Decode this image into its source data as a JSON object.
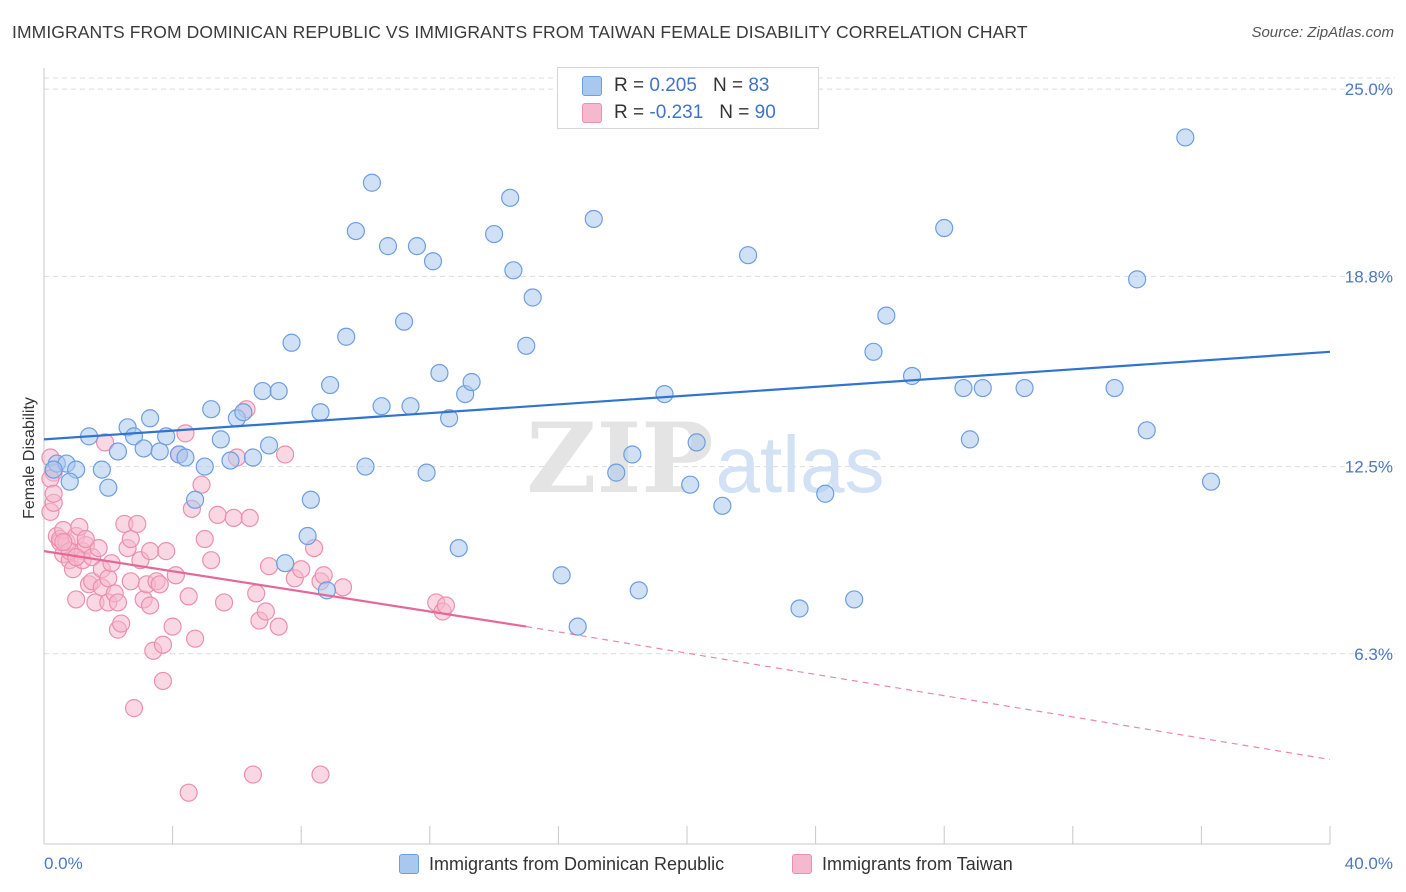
{
  "title": "IMMIGRANTS FROM DOMINICAN REPUBLIC VS IMMIGRANTS FROM TAIWAN FEMALE DISABILITY CORRELATION CHART",
  "source": "Source: ZipAtlas.com",
  "watermark": {
    "zip": "ZIP",
    "atlas": "atlas"
  },
  "legend": {
    "r_label": "R =",
    "n_label": "N =",
    "blue": {
      "r": "0.205",
      "n": "83"
    },
    "pink": {
      "r": "-0.231",
      "n": "90"
    }
  },
  "colors": {
    "blue_fill": "#a9c8ef",
    "blue_stroke": "#6d9ee0",
    "blue_line": "#2f74d0",
    "pink_fill": "#f6b8cc",
    "pink_stroke": "#ec8fae",
    "pink_line": "#e5689a",
    "tick_label": "#4a78c2",
    "grid": "#dcdcdc"
  },
  "chart_data": {
    "type": "scatter",
    "title": "IMMIGRANTS FROM DOMINICAN REPUBLIC VS IMMIGRANTS FROM TAIWAN FEMALE DISABILITY CORRELATION CHART",
    "xlabel": "",
    "ylabel": "Female Disability",
    "xlim": [
      0,
      40
    ],
    "ylim": [
      0,
      25.7
    ],
    "x_tick_labels": [
      {
        "value": 0,
        "label": "0.0%"
      },
      {
        "value": 40,
        "label": "40.0%"
      }
    ],
    "y_tick_labels": [
      {
        "value": 6.3,
        "label": "6.3%"
      },
      {
        "value": 12.5,
        "label": "12.5%"
      },
      {
        "value": 18.8,
        "label": "18.8%"
      },
      {
        "value": 25.0,
        "label": "25.0%"
      }
    ],
    "grid": true,
    "legend_position": "top-center",
    "series": [
      {
        "name": "Immigrants from Dominican Republic",
        "color": "#a9c8ef",
        "trend": {
          "x": [
            0,
            40
          ],
          "y": [
            13.4,
            16.3
          ],
          "style": "solid"
        },
        "points": [
          [
            0.4,
            12.6
          ],
          [
            0.7,
            12.6
          ],
          [
            1.0,
            12.4
          ],
          [
            0.8,
            12.0
          ],
          [
            1.4,
            13.5
          ],
          [
            1.8,
            12.4
          ],
          [
            2.0,
            11.8
          ],
          [
            2.3,
            13.0
          ],
          [
            2.6,
            13.8
          ],
          [
            2.8,
            13.5
          ],
          [
            3.1,
            13.1
          ],
          [
            3.3,
            14.1
          ],
          [
            3.6,
            13.0
          ],
          [
            3.8,
            13.5
          ],
          [
            4.2,
            12.9
          ],
          [
            4.4,
            12.8
          ],
          [
            4.7,
            11.4
          ],
          [
            5.0,
            12.5
          ],
          [
            5.2,
            14.4
          ],
          [
            5.5,
            13.4
          ],
          [
            5.8,
            12.7
          ],
          [
            6.0,
            14.1
          ],
          [
            6.2,
            14.3
          ],
          [
            6.5,
            12.8
          ],
          [
            6.8,
            15.0
          ],
          [
            7.0,
            13.2
          ],
          [
            7.3,
            15.0
          ],
          [
            7.5,
            9.3
          ],
          [
            7.7,
            16.6
          ],
          [
            8.2,
            10.2
          ],
          [
            8.3,
            11.4
          ],
          [
            8.6,
            14.3
          ],
          [
            8.8,
            8.4
          ],
          [
            8.9,
            15.2
          ],
          [
            9.4,
            16.8
          ],
          [
            9.7,
            20.3
          ],
          [
            10.0,
            12.5
          ],
          [
            10.2,
            21.9
          ],
          [
            10.5,
            14.5
          ],
          [
            10.7,
            19.8
          ],
          [
            11.2,
            17.3
          ],
          [
            11.4,
            14.5
          ],
          [
            11.6,
            19.8
          ],
          [
            11.9,
            12.3
          ],
          [
            12.1,
            19.3
          ],
          [
            12.3,
            15.6
          ],
          [
            12.6,
            14.1
          ],
          [
            12.9,
            9.8
          ],
          [
            13.1,
            14.9
          ],
          [
            13.3,
            15.3
          ],
          [
            14.0,
            20.2
          ],
          [
            14.5,
            21.4
          ],
          [
            14.6,
            19.0
          ],
          [
            15.0,
            16.5
          ],
          [
            15.2,
            18.1
          ],
          [
            16.1,
            8.9
          ],
          [
            16.6,
            7.2
          ],
          [
            17.1,
            20.7
          ],
          [
            17.8,
            12.3
          ],
          [
            18.3,
            12.9
          ],
          [
            18.5,
            8.4
          ],
          [
            19.3,
            14.9
          ],
          [
            20.1,
            11.9
          ],
          [
            20.3,
            13.3
          ],
          [
            21.1,
            11.2
          ],
          [
            21.9,
            19.5
          ],
          [
            23.5,
            7.8
          ],
          [
            24.3,
            11.6
          ],
          [
            25.2,
            8.1
          ],
          [
            25.8,
            16.3
          ],
          [
            26.2,
            17.5
          ],
          [
            27.0,
            15.5
          ],
          [
            28.0,
            20.4
          ],
          [
            28.6,
            15.1
          ],
          [
            28.8,
            13.4
          ],
          [
            29.2,
            15.1
          ],
          [
            30.5,
            15.1
          ],
          [
            33.3,
            15.1
          ],
          [
            34.0,
            18.7
          ],
          [
            34.3,
            13.7
          ],
          [
            35.5,
            23.4
          ],
          [
            36.3,
            12.0
          ],
          [
            0.3,
            12.4
          ]
        ]
      },
      {
        "name": "Immigrants from Taiwan",
        "color": "#f6b8cc",
        "trend": {
          "x": [
            0,
            15
          ],
          "y": [
            9.7,
            7.2
          ],
          "style": "solid",
          "extended": {
            "x": [
              15,
              40
            ],
            "y": [
              7.2,
              2.8
            ],
            "style": "dashed"
          }
        },
        "points": [
          [
            0.2,
            12.8
          ],
          [
            0.2,
            11.0
          ],
          [
            0.3,
            11.3
          ],
          [
            0.3,
            12.3
          ],
          [
            0.4,
            10.2
          ],
          [
            0.5,
            10.0
          ],
          [
            0.5,
            10.1
          ],
          [
            0.6,
            10.4
          ],
          [
            0.6,
            9.6
          ],
          [
            0.7,
            10.0
          ],
          [
            0.8,
            9.4
          ],
          [
            0.8,
            9.7
          ],
          [
            0.9,
            9.1
          ],
          [
            1.0,
            8.1
          ],
          [
            1.0,
            10.2
          ],
          [
            1.1,
            10.5
          ],
          [
            1.2,
            9.7
          ],
          [
            1.2,
            9.4
          ],
          [
            1.3,
            9.9
          ],
          [
            1.4,
            8.6
          ],
          [
            1.5,
            8.7
          ],
          [
            1.5,
            9.5
          ],
          [
            1.6,
            8.0
          ],
          [
            1.7,
            9.8
          ],
          [
            1.8,
            8.5
          ],
          [
            1.8,
            9.1
          ],
          [
            1.9,
            13.3
          ],
          [
            2.0,
            8.0
          ],
          [
            2.0,
            8.8
          ],
          [
            2.1,
            9.3
          ],
          [
            2.2,
            8.3
          ],
          [
            2.3,
            8.0
          ],
          [
            2.3,
            7.1
          ],
          [
            2.4,
            7.3
          ],
          [
            2.5,
            10.6
          ],
          [
            2.6,
            9.8
          ],
          [
            2.7,
            8.7
          ],
          [
            2.7,
            10.1
          ],
          [
            2.8,
            4.5
          ],
          [
            2.9,
            10.6
          ],
          [
            3.0,
            9.4
          ],
          [
            3.1,
            8.1
          ],
          [
            3.2,
            8.6
          ],
          [
            3.3,
            7.9
          ],
          [
            3.3,
            9.7
          ],
          [
            3.4,
            6.4
          ],
          [
            3.5,
            8.7
          ],
          [
            3.6,
            8.6
          ],
          [
            3.7,
            6.6
          ],
          [
            3.7,
            5.4
          ],
          [
            3.8,
            9.7
          ],
          [
            4.0,
            7.2
          ],
          [
            4.1,
            8.9
          ],
          [
            4.2,
            12.9
          ],
          [
            4.4,
            13.6
          ],
          [
            4.5,
            8.2
          ],
          [
            4.5,
            1.7
          ],
          [
            4.6,
            11.1
          ],
          [
            4.7,
            6.8
          ],
          [
            4.9,
            11.9
          ],
          [
            5.0,
            10.1
          ],
          [
            5.2,
            9.4
          ],
          [
            5.4,
            10.9
          ],
          [
            5.6,
            8.0
          ],
          [
            5.9,
            10.8
          ],
          [
            6.0,
            12.8
          ],
          [
            6.3,
            14.4
          ],
          [
            6.4,
            10.8
          ],
          [
            6.5,
            2.3
          ],
          [
            6.6,
            8.3
          ],
          [
            6.7,
            7.4
          ],
          [
            6.9,
            7.7
          ],
          [
            7.0,
            9.2
          ],
          [
            7.3,
            7.2
          ],
          [
            7.5,
            12.9
          ],
          [
            7.8,
            8.8
          ],
          [
            8.0,
            9.1
          ],
          [
            8.4,
            9.8
          ],
          [
            8.6,
            2.3
          ],
          [
            8.6,
            8.7
          ],
          [
            8.7,
            8.9
          ],
          [
            9.3,
            8.5
          ],
          [
            12.2,
            8.0
          ],
          [
            12.4,
            7.7
          ],
          [
            12.5,
            7.9
          ],
          [
            0.2,
            12.1
          ],
          [
            0.3,
            11.6
          ],
          [
            0.6,
            10.0
          ],
          [
            1.0,
            9.5
          ],
          [
            1.3,
            10.1
          ]
        ]
      }
    ]
  },
  "bottom_legend": {
    "blue_label": "Immigrants from Dominican Republic",
    "pink_label": "Immigrants from Taiwan"
  }
}
